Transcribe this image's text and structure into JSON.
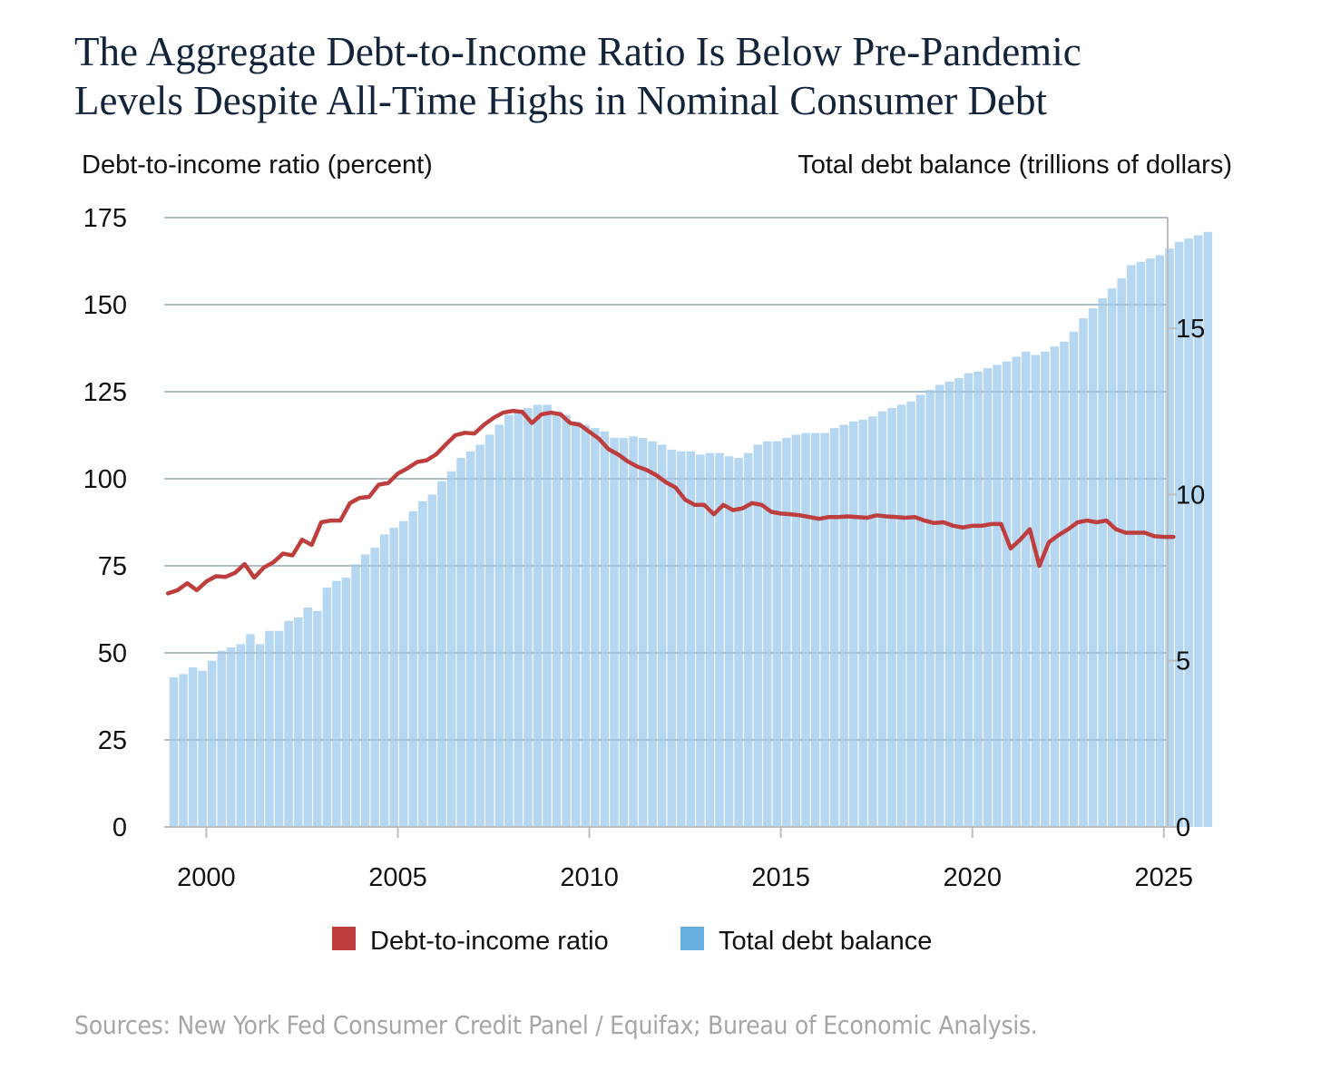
{
  "chart_data": {
    "type": "bar+line",
    "title": "The Aggregate Debt-to-Income Ratio Is Below Pre-Pandemic Levels Despite All-Time Highs in Nominal Consumer Debt",
    "title_lines": [
      "The Aggregate Debt-to-Income Ratio Is Below Pre-Pandemic",
      "Levels Despite All-Time Highs in Nominal Consumer Debt"
    ],
    "ylabel_left": "Debt-to-income ratio (percent)",
    "ylabel_right": "Total debt balance (trillions of dollars)",
    "yleft_ticks": [
      0,
      25,
      50,
      75,
      100,
      125,
      150,
      175
    ],
    "yleft_lim": [
      0,
      175
    ],
    "yright_ticks": [
      0,
      5,
      10,
      15
    ],
    "yright_lim": [
      0,
      18.33
    ],
    "x_ticks": [
      2000,
      2005,
      2010,
      2015,
      2020,
      2025
    ],
    "xlim": [
      1998.9,
      2025.1
    ],
    "grid": true,
    "legend_position": "bottom-center",
    "x_start": 1999.0,
    "x_step": 0.25,
    "series": [
      {
        "name": "Debt-to-income ratio",
        "kind": "line",
        "axis": "left",
        "color": "#be3d3d",
        "values": [
          67.1,
          68,
          70,
          68,
          70.5,
          72,
          71.8,
          73,
          75.5,
          71.6,
          74.5,
          76,
          78.5,
          78,
          82.5,
          81,
          87.5,
          88,
          88,
          93,
          94.5,
          94.8,
          98.3,
          98.8,
          101.5,
          103,
          104.8,
          105.3,
          107,
          109.8,
          112.5,
          113.2,
          113,
          115.5,
          117.5,
          119,
          119.5,
          119.2,
          116,
          118.5,
          119,
          118.5,
          116,
          115.5,
          113.5,
          111.5,
          108.5,
          107,
          105,
          103.5,
          102.5,
          101,
          99,
          97.5,
          94,
          92.5,
          92.5,
          89.8,
          92.5,
          91,
          91.5,
          93,
          92.5,
          90.5,
          90,
          89.8,
          89.5,
          89,
          88.5,
          89,
          89,
          89.2,
          89,
          88.8,
          89.5,
          89.2,
          89,
          88.8,
          89,
          88,
          87.3,
          87.5,
          86.5,
          86,
          86.5,
          86.5,
          87,
          87,
          80,
          82.5,
          85.5,
          75,
          81.8,
          83.8,
          85.5,
          87.5,
          88,
          87.5,
          88,
          85.5,
          84.5,
          84.5,
          84.5,
          83.5,
          83.3,
          83.3
        ]
      },
      {
        "name": "Total debt balance",
        "kind": "bar",
        "axis": "right",
        "color": "#b5d7f1",
        "values": [
          4.5,
          4.6,
          4.8,
          4.7,
          5.0,
          5.3,
          5.4,
          5.5,
          5.8,
          5.5,
          5.9,
          5.9,
          6.2,
          6.3,
          6.6,
          6.5,
          7.2,
          7.4,
          7.5,
          7.9,
          8.2,
          8.4,
          8.8,
          9.0,
          9.2,
          9.5,
          9.8,
          10.0,
          10.4,
          10.7,
          11.1,
          11.3,
          11.5,
          11.8,
          12.1,
          12.4,
          12.5,
          12.6,
          12.7,
          12.7,
          12.5,
          12.4,
          12.2,
          12.1,
          12.0,
          11.9,
          11.7,
          11.7,
          11.75,
          11.7,
          11.6,
          11.5,
          11.35,
          11.3,
          11.3,
          11.2,
          11.25,
          11.25,
          11.15,
          11.1,
          11.25,
          11.5,
          11.6,
          11.6,
          11.7,
          11.8,
          11.85,
          11.85,
          11.85,
          12.0,
          12.1,
          12.2,
          12.25,
          12.35,
          12.5,
          12.6,
          12.7,
          12.8,
          13.0,
          13.15,
          13.3,
          13.4,
          13.5,
          13.65,
          13.7,
          13.8,
          13.9,
          14.0,
          14.15,
          14.3,
          14.2,
          14.3,
          14.45,
          14.6,
          14.9,
          15.3,
          15.6,
          15.9,
          16.2,
          16.5,
          16.9,
          17.0,
          17.1,
          17.2,
          17.4,
          17.6,
          17.7,
          17.8,
          17.9
        ]
      }
    ],
    "source": "Sources: New York Fed Consumer Credit Panel / Equifax; Bureau of Economic Analysis."
  }
}
